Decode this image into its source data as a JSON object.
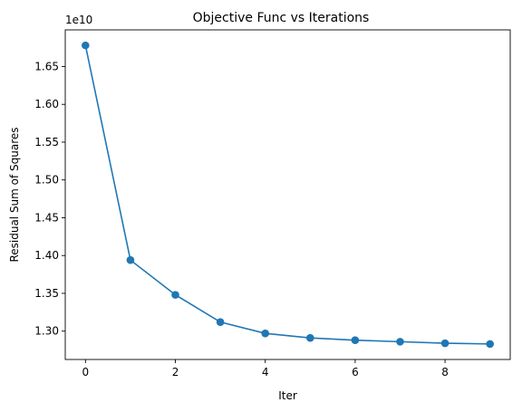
{
  "chart_data": {
    "type": "line",
    "title": "Objective Func vs Iterations",
    "xlabel": "Iter",
    "ylabel": "Residual Sum of Squares",
    "y_offset_label": "1e10",
    "x": [
      0,
      1,
      2,
      3,
      4,
      5,
      6,
      7,
      8,
      9
    ],
    "series": [
      {
        "values": [
          1.678,
          1.394,
          1.348,
          1.312,
          1.297,
          1.291,
          1.288,
          1.286,
          1.284,
          1.283
        ],
        "color": "#1f77b4",
        "marker": "circle"
      }
    ],
    "xlim": [
      -0.45,
      9.45
    ],
    "ylim": [
      1.2625,
      1.6985
    ],
    "x_ticks": [
      0,
      2,
      4,
      6,
      8
    ],
    "x_tick_labels": [
      "0",
      "2",
      "4",
      "6",
      "8"
    ],
    "y_ticks": [
      1.3,
      1.35,
      1.4,
      1.45,
      1.5,
      1.55,
      1.6,
      1.65
    ],
    "y_tick_labels": [
      "1.30",
      "1.35",
      "1.40",
      "1.45",
      "1.50",
      "1.55",
      "1.60",
      "1.65"
    ],
    "grid": false,
    "legend": false
  }
}
